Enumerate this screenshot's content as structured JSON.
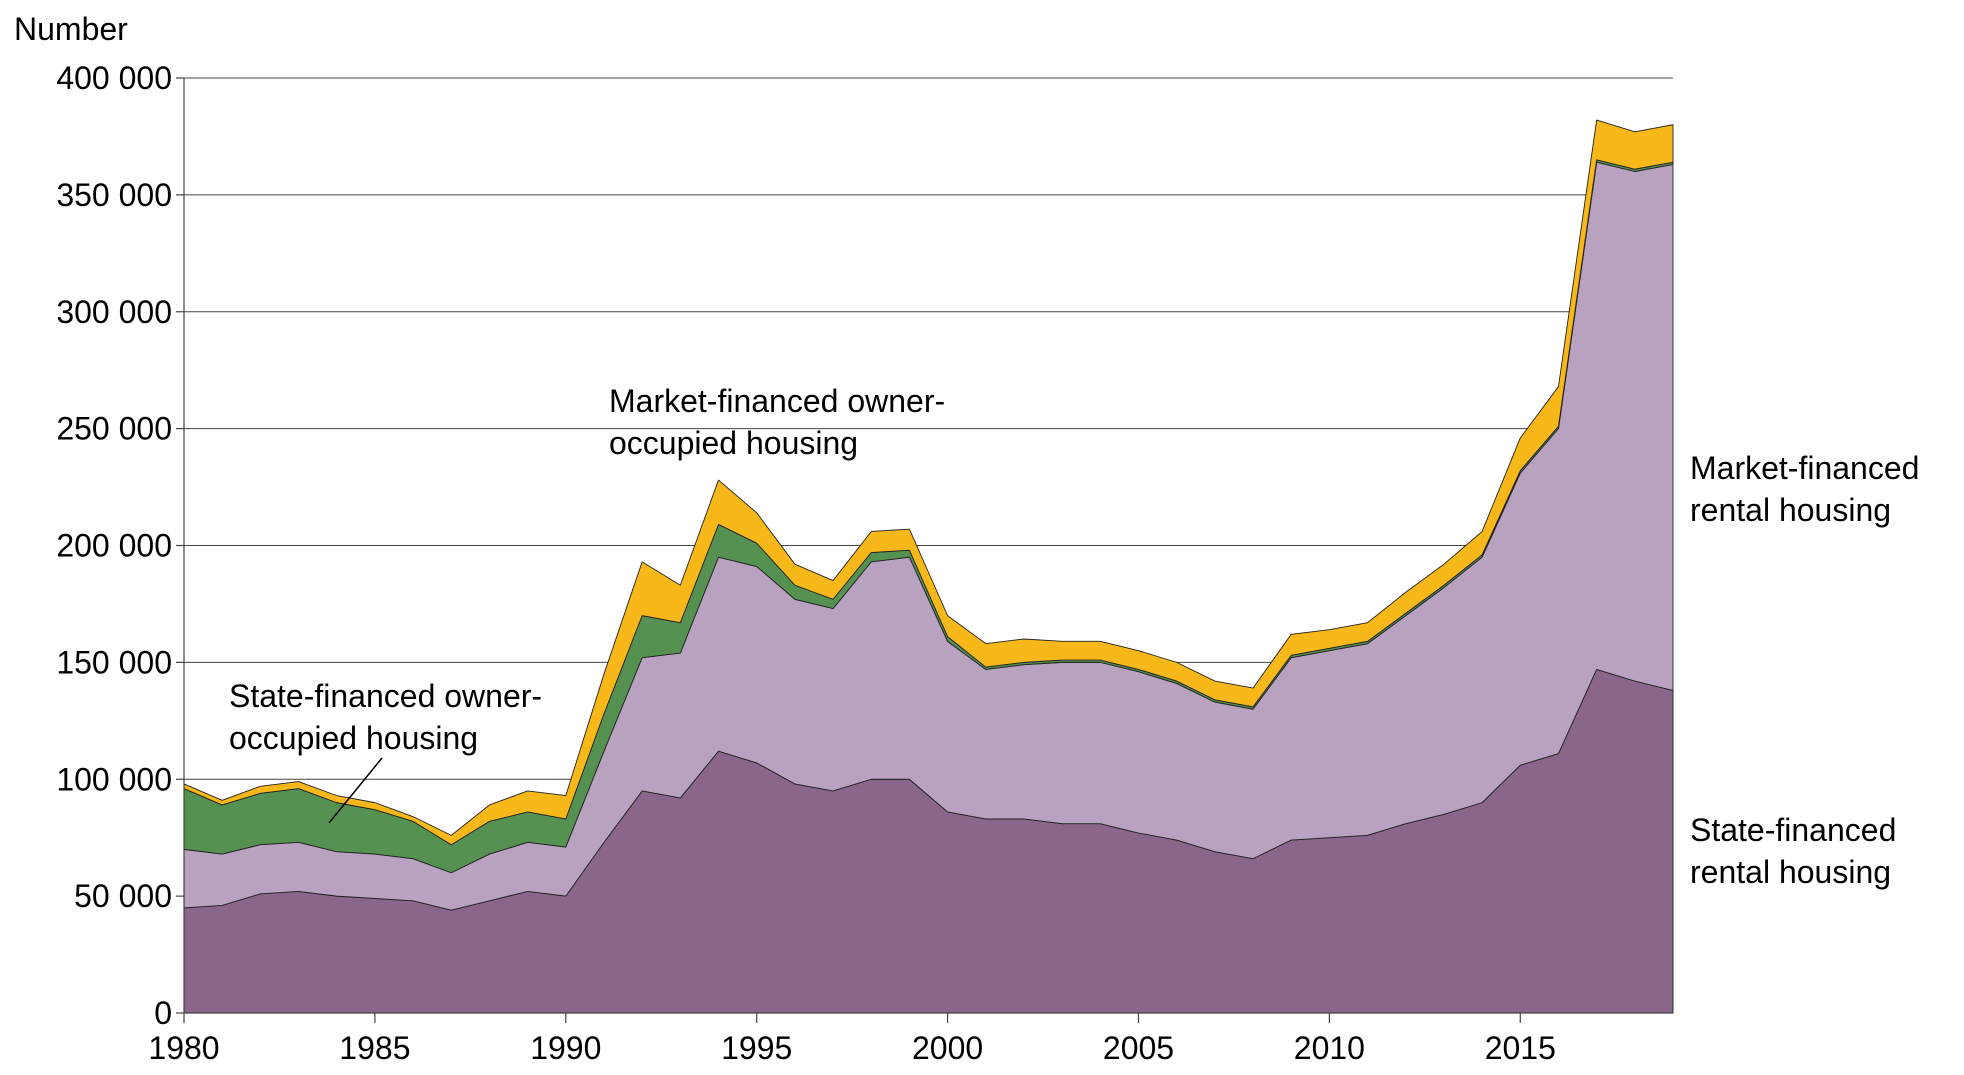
{
  "chart_data": {
    "type": "stacked_area",
    "y_label": "Number",
    "x": [
      1980,
      1981,
      1982,
      1983,
      1984,
      1985,
      1986,
      1987,
      1988,
      1989,
      1990,
      1991,
      1992,
      1993,
      1994,
      1995,
      1996,
      1997,
      1998,
      1999,
      2000,
      2001,
      2002,
      2003,
      2004,
      2005,
      2006,
      2007,
      2008,
      2009,
      2010,
      2011,
      2012,
      2013,
      2014,
      2015,
      2016,
      2017,
      2018,
      2019
    ],
    "xlim": [
      1980,
      2019
    ],
    "xticks": [
      1980,
      1985,
      1990,
      1995,
      2000,
      2005,
      2010,
      2015
    ],
    "ylim": [
      0,
      400000
    ],
    "yticks": [
      0,
      {
        "value": 50000,
        "label": "50 000"
      },
      {
        "value": 100000,
        "label": "100 000"
      },
      {
        "value": 150000,
        "label": "150 000"
      },
      {
        "value": 200000,
        "label": "200 000"
      },
      {
        "value": 250000,
        "label": "250 000"
      },
      {
        "value": 300000,
        "label": "300 000"
      },
      {
        "value": 350000,
        "label": "350 000"
      },
      {
        "value": 400000,
        "label": "400 000"
      }
    ],
    "grid": true,
    "series": [
      {
        "name": "State-financed rental housing",
        "color": "#8a668b",
        "values": [
          45000,
          46000,
          51000,
          52000,
          50000,
          49000,
          48000,
          44000,
          48000,
          52000,
          50000,
          73000,
          95000,
          92000,
          112000,
          107000,
          98000,
          95000,
          100000,
          100000,
          86000,
          83000,
          83000,
          81000,
          81000,
          77000,
          74000,
          69000,
          66000,
          74000,
          75000,
          76000,
          81000,
          85000,
          90000,
          106000,
          111000,
          147000,
          142000,
          138000
        ]
      },
      {
        "name": "Market-financed rental housing",
        "color": "#b8a2bf",
        "values": [
          25000,
          22000,
          21000,
          21000,
          19000,
          19000,
          18000,
          16000,
          20000,
          21000,
          21000,
          39000,
          57000,
          62000,
          83000,
          84000,
          79000,
          78000,
          93000,
          95000,
          73000,
          64000,
          66000,
          69000,
          69000,
          69000,
          67000,
          64000,
          64000,
          78000,
          80000,
          82000,
          89000,
          97000,
          105000,
          125000,
          139000,
          217000,
          218000,
          225000
        ]
      },
      {
        "name": "State-financed owner-occupied housing",
        "color": "#559150",
        "values": [
          26000,
          21000,
          22000,
          23000,
          21000,
          19000,
          16000,
          12000,
          14000,
          13000,
          12000,
          16000,
          18000,
          13000,
          14000,
          10000,
          6000,
          4000,
          4000,
          3000,
          2000,
          1000,
          1000,
          1000,
          1000,
          1000,
          1000,
          1000,
          1000,
          1000,
          1000,
          1000,
          1000,
          1000,
          1000,
          1000,
          1000,
          1000,
          1000,
          1000
        ]
      },
      {
        "name": "Market-financed owner-occupied housing",
        "color": "#f9b81a",
        "values": [
          2000,
          2000,
          3000,
          3000,
          3000,
          3000,
          2000,
          4000,
          7000,
          9000,
          10000,
          17000,
          23000,
          16000,
          19000,
          13000,
          9000,
          8000,
          9000,
          9000,
          9000,
          10000,
          10000,
          8000,
          8000,
          8000,
          8000,
          8000,
          8000,
          9000,
          8000,
          8000,
          9000,
          9000,
          10000,
          14000,
          17000,
          17000,
          16000,
          16000
        ]
      }
    ]
  }
}
